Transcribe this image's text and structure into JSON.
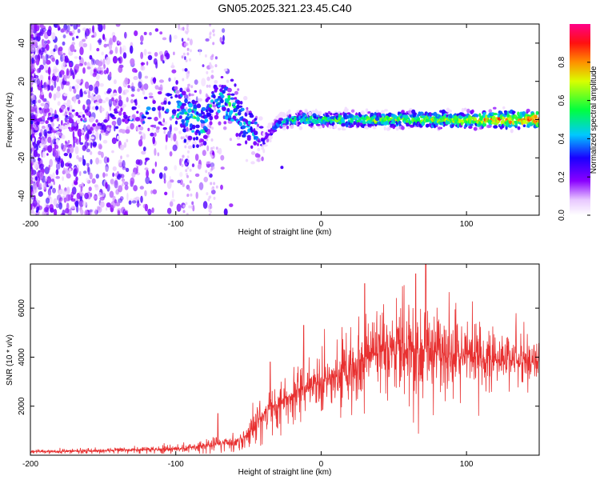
{
  "title": "GN05.2025.321.23.45.C40",
  "colors": {
    "line": "#e83030",
    "frame": "#000000",
    "background": "#ffffff"
  },
  "chart_data": [
    {
      "type": "heatmap",
      "title": "GN05.2025.321.23.45.C40",
      "xlabel": "Height of straight line (km)",
      "ylabel": "Frequency (Hz)",
      "xlim": [
        -200,
        150
      ],
      "ylim": [
        -50,
        50
      ],
      "xticks": [
        -200,
        -100,
        0,
        100
      ],
      "xtick_labels": [
        "-200",
        "-100",
        "0",
        "100"
      ],
      "yticks": [
        -40,
        -20,
        0,
        20,
        40
      ],
      "ytick_labels": [
        "-40",
        "-20",
        "0",
        "20",
        "40"
      ],
      "colorbar": {
        "label": "Normalized spectral amplitude",
        "range": [
          0,
          1
        ],
        "ticks": [
          0.0,
          0.2,
          0.4,
          0.6,
          0.8
        ],
        "tick_labels": [
          "0.0",
          "0.2",
          "0.4",
          "0.6",
          "0.8"
        ],
        "colormap": "rainbow"
      },
      "description_track": {
        "x": [
          -200,
          -150,
          -110,
          -100,
          -90,
          -80,
          -75,
          -70,
          -60,
          -50,
          -40,
          -30,
          -20,
          0,
          50,
          100,
          150
        ],
        "frequency": [
          0,
          0,
          5,
          8,
          2,
          -3,
          10,
          10,
          7,
          -5,
          -12,
          -2,
          0,
          0,
          0,
          0,
          0
        ],
        "amplitude": [
          0.2,
          0.25,
          0.3,
          0.4,
          0.45,
          0.4,
          0.35,
          0.4,
          0.45,
          0.35,
          0.3,
          0.4,
          0.5,
          0.55,
          0.6,
          0.7,
          0.85
        ]
      }
    },
    {
      "type": "line",
      "xlabel": "Height of straight line (km)",
      "ylabel": "SNR (10 * v/v)",
      "xlim": [
        -200,
        150
      ],
      "ylim": [
        0,
        7800
      ],
      "xticks": [
        -200,
        -100,
        0,
        100
      ],
      "xtick_labels": [
        "-200",
        "-100",
        "0",
        "100"
      ],
      "yticks": [
        2000,
        4000,
        6000
      ],
      "ytick_labels": [
        "2000",
        "4000",
        "6000"
      ],
      "series": [
        {
          "name": "SNR",
          "x": [
            -200,
            -180,
            -160,
            -140,
            -120,
            -100,
            -90,
            -80,
            -70,
            -60,
            -55,
            -50,
            -45,
            -40,
            -35,
            -30,
            -25,
            -20,
            -15,
            -10,
            -5,
            0,
            10,
            20,
            30,
            40,
            50,
            60,
            70,
            80,
            90,
            100,
            110,
            120,
            130,
            140,
            150
          ],
          "values": [
            150,
            150,
            180,
            200,
            220,
            250,
            300,
            380,
            480,
            500,
            650,
            900,
            1200,
            1600,
            1900,
            2000,
            2300,
            2500,
            2700,
            2800,
            2900,
            3000,
            3300,
            3700,
            4000,
            4200,
            4300,
            4400,
            4300,
            4200,
            4100,
            4000,
            4000,
            3900,
            3900,
            3800,
            3800
          ],
          "spread": [
            100,
            100,
            120,
            120,
            150,
            180,
            200,
            250,
            300,
            300,
            400,
            500,
            700,
            900,
            1000,
            1000,
            1100,
            1100,
            1100,
            1200,
            1200,
            1300,
            1300,
            1500,
            1600,
            1700,
            1800,
            1900,
            1900,
            1800,
            1700,
            1600,
            1500,
            1400,
            1300,
            1200,
            1100
          ]
        }
      ],
      "peaks": [
        {
          "x": -71,
          "value": 1700
        },
        {
          "x": -35,
          "value": 3800
        },
        {
          "x": -12,
          "value": 5300
        },
        {
          "x": 30,
          "value": 7000
        },
        {
          "x": 65,
          "value": 7400
        },
        {
          "x": 72,
          "value": 7900
        }
      ]
    }
  ]
}
